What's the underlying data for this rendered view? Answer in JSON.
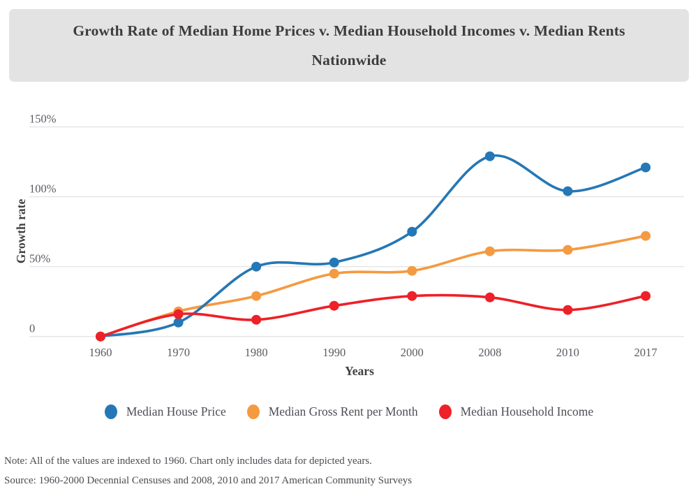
{
  "title": {
    "lines": [
      "Growth Rate of Median Home Prices v. Median Household Incomes v. Median Rents",
      "Nationwide"
    ]
  },
  "chart_data": {
    "type": "line",
    "title": "Growth Rate of Median Home Prices v. Median Household Incomes v. Median Rents Nationwide",
    "categories": [
      "1960",
      "1970",
      "1980",
      "1990",
      "2000",
      "2008",
      "2010",
      "2017"
    ],
    "series": [
      {
        "name": "Median House Price",
        "color": "#2577b5",
        "values": [
          0,
          10,
          50,
          53,
          75,
          129,
          104,
          121
        ]
      },
      {
        "name": "Median Gross Rent per Month",
        "color": "#f49a41",
        "values": [
          0,
          18,
          29,
          45,
          47,
          61,
          62,
          72
        ]
      },
      {
        "name": "Median Household Income",
        "color": "#ee2028",
        "values": [
          0,
          16,
          12,
          22,
          29,
          28,
          19,
          29
        ]
      }
    ],
    "draw_order": [
      1,
      0,
      2
    ],
    "xlabel": "Years",
    "ylabel": "Growth rate",
    "yticks": [
      {
        "value": 0,
        "label": "0"
      },
      {
        "value": 50,
        "label": "50%"
      },
      {
        "value": 100,
        "label": "100%"
      },
      {
        "value": 150,
        "label": "150%"
      }
    ],
    "ylim": [
      0,
      160
    ],
    "grid": true,
    "legend_position": "bottom"
  },
  "notes": {
    "note": "Note: All of the values are indexed to 1960. Chart only includes data for depicted years.",
    "source": "Source: 1960-2000 Decennial Censuses and 2008, 2010 and 2017 American Community Surveys"
  },
  "colors": {
    "title_box_bg": "#e4e3e3",
    "gridline": "#e0e0e0",
    "tick_text": "#5a5a62",
    "axis_title_text": "#3f3f3f"
  }
}
